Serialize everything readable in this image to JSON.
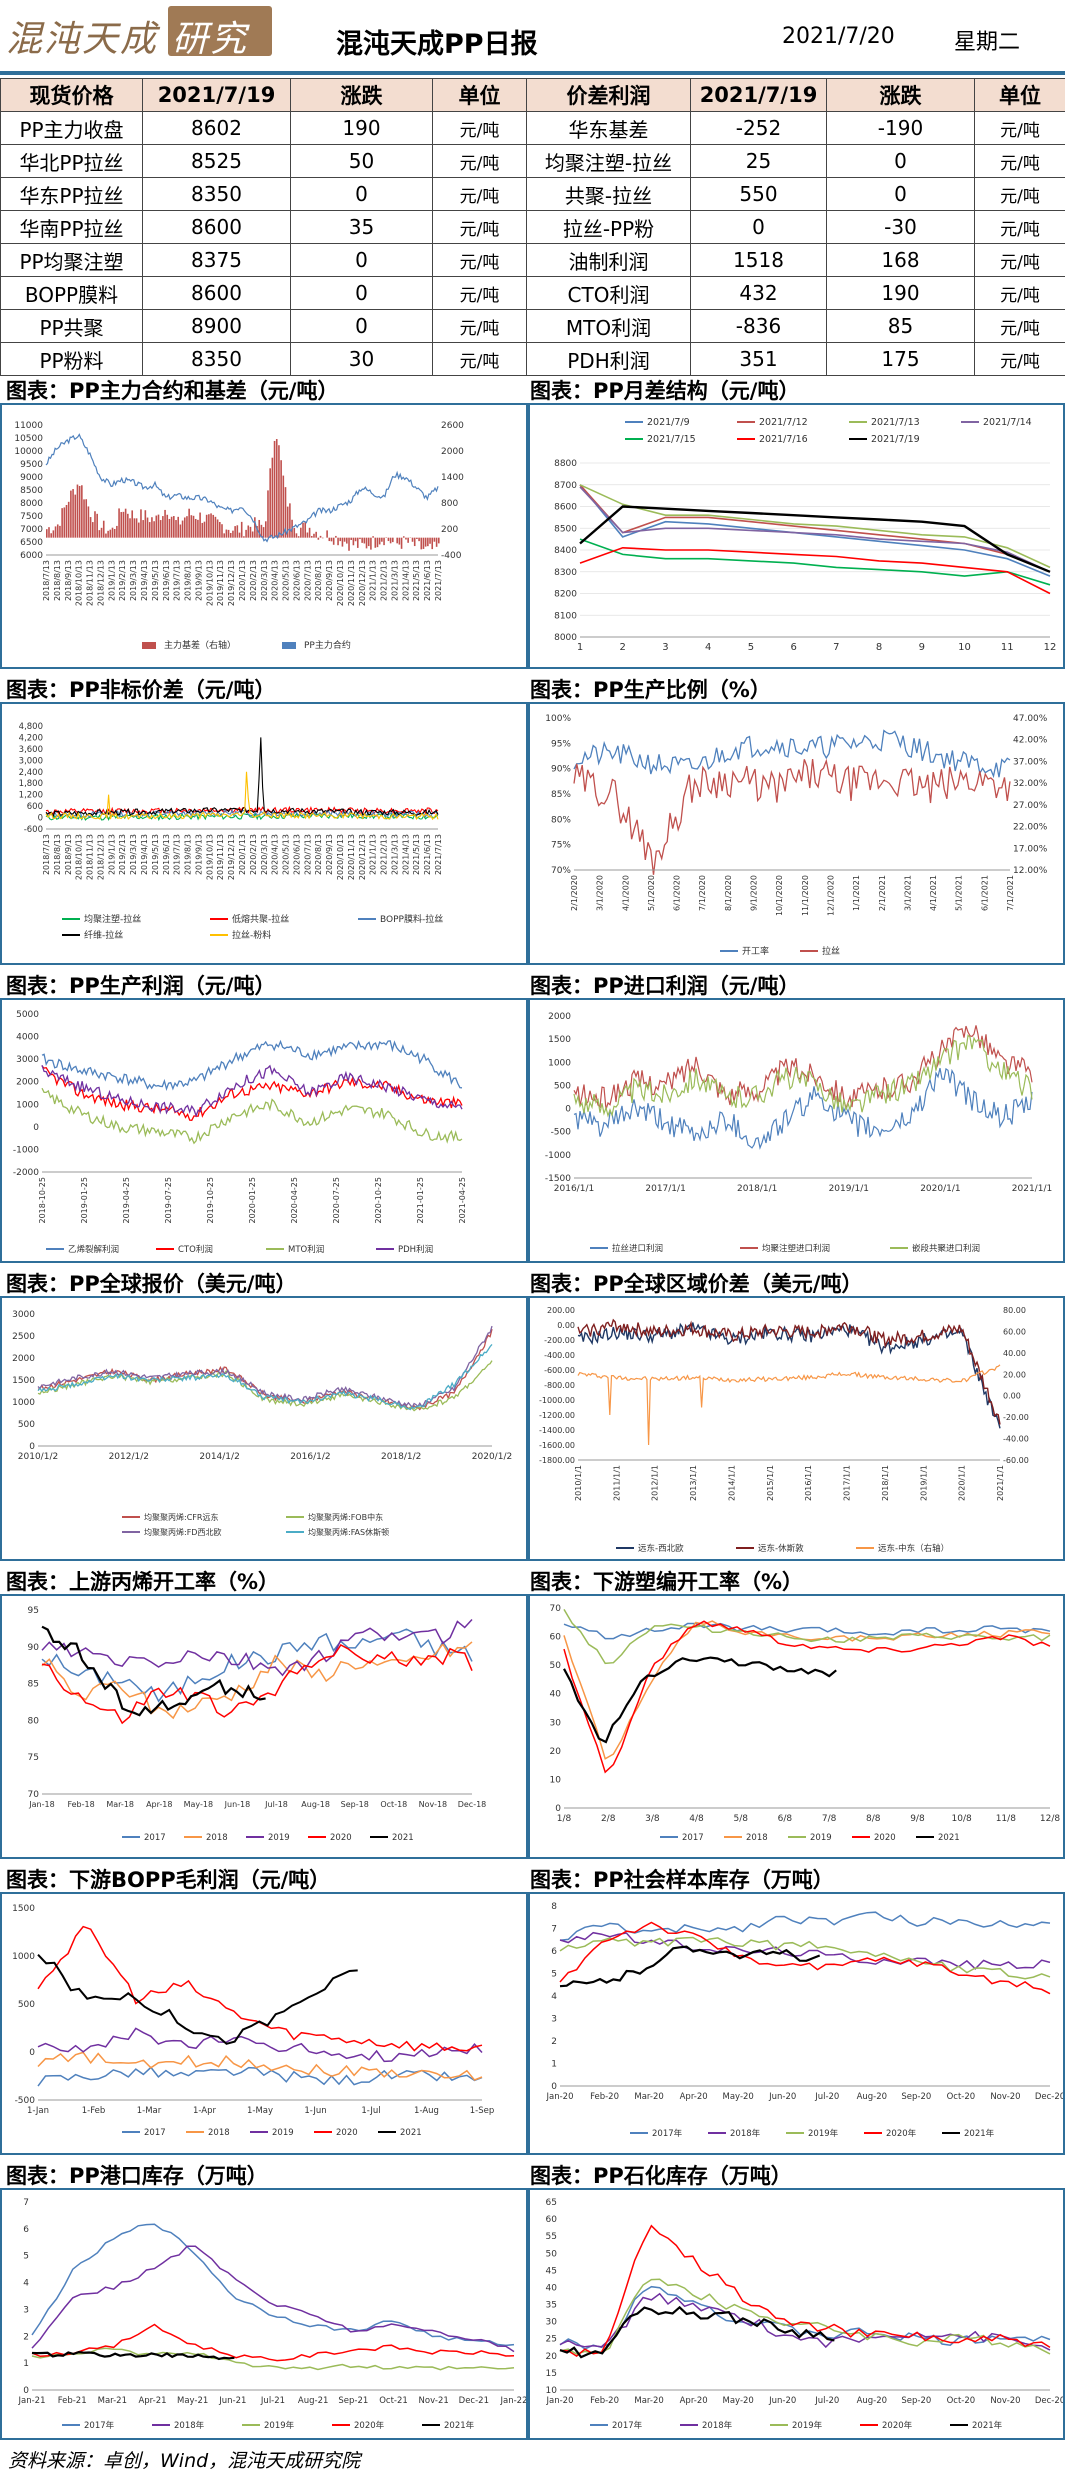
{
  "header": {
    "logo_left": "混沌天成",
    "logo_right": "研究院",
    "title": "混沌天成PP日报",
    "date": "2021/7/20",
    "weekday": "星期二"
  },
  "table": {
    "headers": [
      "现货价格",
      "2021/7/19",
      "涨跌",
      "单位",
      "价差利润",
      "2021/7/19",
      "涨跌",
      "单位"
    ],
    "rows": [
      [
        "PP主力收盘",
        "8602",
        "190",
        "元/吨",
        "华东基差",
        "-252",
        "-190",
        "元/吨"
      ],
      [
        "华北PP拉丝",
        "8525",
        "50",
        "元/吨",
        "均聚注塑-拉丝",
        "25",
        "0",
        "元/吨"
      ],
      [
        "华东PP拉丝",
        "8350",
        "0",
        "元/吨",
        "共聚-拉丝",
        "550",
        "0",
        "元/吨"
      ],
      [
        "华南PP拉丝",
        "8600",
        "35",
        "元/吨",
        "拉丝-PP粉",
        "0",
        "-30",
        "元/吨"
      ],
      [
        "PP均聚注塑",
        "8375",
        "0",
        "元/吨",
        "油制利润",
        "1518",
        "168",
        "元/吨"
      ],
      [
        "BOPP膜料",
        "8600",
        "0",
        "元/吨",
        "CTO利润",
        "432",
        "190",
        "元/吨"
      ],
      [
        "PP共聚",
        "8900",
        "0",
        "元/吨",
        "MTO利润",
        "-836",
        "85",
        "元/吨"
      ],
      [
        "PP粉料",
        "8350",
        "30",
        "元/吨",
        "PDH利润",
        "351",
        "175",
        "元/吨"
      ]
    ]
  },
  "section_titles": [
    "图表：PP主力合约和基差（元/吨）",
    "图表：PP月差结构（元/吨）",
    "图表：PP非标价差（元/吨）",
    "图表：PP生产比例（%）",
    "图表：PP生产利润（元/吨）",
    "图表：PP进口利润（元/吨）",
    "图表：PP全球报价（美元/吨）",
    "图表：PP全球区域价差（美元/吨）",
    "图表：上游丙烯开工率（%）",
    "图表：下游塑编开工率（%）",
    "图表：下游BOPP毛利润（元/吨）",
    "图表：PP社会样本库存（万吨）",
    "图表：PP港口库存（万吨）",
    "图表：PP石化库存（万吨）"
  ],
  "source": "资料来源：卓创，Wind，混沌天成研究院",
  "chart_data": [
    {
      "id": "c1",
      "type": "line",
      "title": "",
      "x_ticks": [
        "2018/7/13",
        "2018/8/13",
        "2018/9/13",
        "2018/10/13",
        "2018/11/13",
        "2018/12/13",
        "2019/1/13",
        "2019/2/13",
        "2019/3/13",
        "2019/4/13",
        "2019/5/13",
        "2019/6/13",
        "2019/7/13",
        "2019/8/13",
        "2019/9/13",
        "2019/10/13",
        "2019/11/13",
        "2019/12/13",
        "2020/1/13",
        "2020/2/13",
        "2020/3/13",
        "2020/4/13",
        "2020/5/13",
        "2020/6/13",
        "2020/7/13",
        "2020/8/13",
        "2020/9/13",
        "2020/10/13",
        "2020/11/13",
        "2020/12/13",
        "2021/1/13",
        "2021/2/13",
        "2021/3/13",
        "2021/4/13",
        "2021/5/13",
        "2021/6/13",
        "2021/7/13"
      ],
      "y_left": [
        6000,
        6500,
        7000,
        7500,
        8000,
        8500,
        9000,
        9500,
        10000,
        10500,
        11000
      ],
      "y_right": [
        -400,
        200,
        800,
        1400,
        2000,
        2600
      ],
      "series": [
        {
          "name": "主力基差（右轴）",
          "color": "#c0504d",
          "kind": "bar",
          "axis": "right"
        },
        {
          "name": "PP主力合约",
          "color": "#4f81bd",
          "kind": "line",
          "axis": "left",
          "values": [
            9500,
            10100,
            10400,
            10600,
            9900,
            9000,
            8700,
            8900,
            8800,
            8600,
            8700,
            8200,
            8300,
            8200,
            8200,
            8100,
            7800,
            7700,
            7900,
            7400,
            6600,
            6700,
            6900,
            7100,
            7300,
            7700,
            7700,
            7900,
            8100,
            8600,
            8400,
            8200,
            9100,
            9000,
            8600,
            8200,
            8600
          ]
        }
      ],
      "basis": [
        200,
        300,
        900,
        1300,
        600,
        250,
        150,
        700,
        500,
        500,
        400,
        700,
        300,
        550,
        500,
        400,
        300,
        200,
        200,
        300,
        250,
        2600,
        900,
        200,
        250,
        100,
        50,
        -50,
        -150,
        -200,
        -100,
        0,
        -150,
        -100,
        -200,
        -300,
        -250
      ]
    },
    {
      "id": "c2",
      "type": "line",
      "title": "",
      "x": [
        1,
        2,
        3,
        4,
        5,
        6,
        7,
        8,
        9,
        10,
        11,
        12
      ],
      "ylim": [
        8000,
        8800
      ],
      "y_ticks": [
        8000,
        8100,
        8200,
        8300,
        8400,
        8500,
        8600,
        8700,
        8800
      ],
      "series": [
        {
          "name": "2021/7/9",
          "color": "#4f81bd",
          "values": [
            8700,
            8460,
            8530,
            8520,
            8500,
            8480,
            8460,
            8440,
            8420,
            8400,
            8360,
            8280
          ]
        },
        {
          "name": "2021/7/12",
          "color": "#c0504d",
          "values": [
            8700,
            8480,
            8550,
            8550,
            8530,
            8510,
            8490,
            8470,
            8450,
            8430,
            8380,
            8300
          ]
        },
        {
          "name": "2021/7/13",
          "color": "#9bbb59",
          "values": [
            8700,
            8610,
            8560,
            8560,
            8540,
            8520,
            8510,
            8490,
            8470,
            8460,
            8410,
            8320
          ]
        },
        {
          "name": "2021/7/14",
          "color": "#8064a2",
          "values": [
            8690,
            8480,
            8500,
            8500,
            8490,
            8480,
            8470,
            8450,
            8440,
            8430,
            8390,
            8300
          ]
        },
        {
          "name": "2021/7/15",
          "color": "#00b050",
          "values": [
            8450,
            8380,
            8360,
            8360,
            8350,
            8340,
            8320,
            8310,
            8300,
            8280,
            8300,
            8240
          ]
        },
        {
          "name": "2021/7/16",
          "color": "#ff0000",
          "values": [
            8340,
            8410,
            8400,
            8400,
            8390,
            8380,
            8370,
            8350,
            8340,
            8320,
            8300,
            8200
          ]
        },
        {
          "name": "2021/7/19",
          "color": "#000000",
          "values": [
            8430,
            8600,
            8590,
            8580,
            8570,
            8560,
            8550,
            8540,
            8530,
            8510,
            8380,
            8300
          ]
        }
      ]
    },
    {
      "id": "c3",
      "type": "line",
      "title": "",
      "x_ticks": [
        "2018/7/13",
        "2018/8/13",
        "2018/9/13",
        "2018/10/13",
        "2018/11/13",
        "2018/12/13",
        "2019/1/13",
        "2019/2/13",
        "2019/3/13",
        "2019/4/13",
        "2019/5/13",
        "2019/6/13",
        "2019/7/13",
        "2019/8/13",
        "2019/9/13",
        "2019/10/13",
        "2019/11/13",
        "2019/12/13",
        "2020/1/13",
        "2020/2/13",
        "2020/3/13",
        "2020/4/13",
        "2020/5/13",
        "2020/6/13",
        "2020/7/13",
        "2020/8/13",
        "2020/9/13",
        "2020/10/13",
        "2020/11/13",
        "2020/12/13",
        "2021/1/13",
        "2021/2/13",
        "2021/3/13",
        "2021/4/13",
        "2021/5/13",
        "2021/6/13",
        "2021/7/13"
      ],
      "y_ticks": [
        -600,
        0,
        600,
        1200,
        1800,
        2400,
        3000,
        3600,
        4200,
        4800
      ],
      "y_tick_labels": [
        "-600",
        "0",
        "600",
        "1,200",
        "1,800",
        "2,400",
        "3,000",
        "3,600",
        "4,200",
        "4,800"
      ],
      "series": [
        {
          "name": "均聚注塑-拉丝",
          "color": "#00b050"
        },
        {
          "name": "低熔共聚-拉丝",
          "color": "#ff0000"
        },
        {
          "name": "BOPP膜料-拉丝",
          "color": "#4f81bd"
        },
        {
          "name": "纤维-拉丝",
          "color": "#000000"
        },
        {
          "name": "拉丝-粉料",
          "color": "#ffc000"
        }
      ]
    },
    {
      "id": "c4",
      "type": "line",
      "title": "",
      "y_left_ticks": [
        "70%",
        "75%",
        "80%",
        "85%",
        "90%",
        "95%",
        "100%"
      ],
      "y_right_ticks": [
        "12.00%",
        "17.00%",
        "22.00%",
        "27.00%",
        "32.00%",
        "37.00%",
        "42.00%",
        "47.00%"
      ],
      "x_ticks": [
        "2/1/2020",
        "3/1/2020",
        "4/1/2020",
        "5/1/2020",
        "6/1/2020",
        "7/1/2020",
        "8/1/2020",
        "9/1/2020",
        "10/1/2020",
        "11/1/2020",
        "12/1/2020",
        "1/1/2021",
        "2/1/2021",
        "3/1/2021",
        "4/1/2021",
        "5/1/2021",
        "6/1/2021",
        "7/1/2021"
      ],
      "series": [
        {
          "name": "开工率",
          "color": "#4f81bd"
        },
        {
          "name": "拉丝",
          "color": "#c0504d"
        }
      ]
    },
    {
      "id": "c5",
      "type": "line",
      "title": "",
      "y_ticks": [
        -2000,
        -1000,
        0,
        1000,
        2000,
        3000,
        4000,
        5000
      ],
      "x_ticks": [
        "2018-10-25",
        "2019-01-25",
        "2019-04-25",
        "2019-07-25",
        "2019-10-25",
        "2020-01-25",
        "2020-04-25",
        "2020-07-25",
        "2020-10-25",
        "2021-01-25",
        "2021-04-25"
      ],
      "series": [
        {
          "name": "乙烯裂解利润",
          "color": "#4f81bd"
        },
        {
          "name": "CTO利润",
          "color": "#ff0000"
        },
        {
          "name": "MTO利润",
          "color": "#9bbb59"
        },
        {
          "name": "PDH利润",
          "color": "#7030a0"
        }
      ]
    },
    {
      "id": "c6",
      "type": "line",
      "title": "",
      "y_ticks": [
        -1500,
        -1000,
        -500,
        0,
        500,
        1000,
        1500,
        2000
      ],
      "x_ticks": [
        "2016/1/1",
        "2017/1/1",
        "2018/1/1",
        "2019/1/1",
        "2020/1/1",
        "2021/1/1"
      ],
      "series": [
        {
          "name": "拉丝进口利润",
          "color": "#4f81bd"
        },
        {
          "name": "均聚注塑进口利润",
          "color": "#c0504d"
        },
        {
          "name": "嵌段共聚进口利润",
          "color": "#9bbb59"
        }
      ]
    },
    {
      "id": "c7",
      "type": "line",
      "title": "",
      "y_ticks": [
        0,
        500,
        1000,
        1500,
        2000,
        2500,
        3000
      ],
      "x_ticks": [
        "2010/1/2",
        "2012/1/2",
        "2014/1/2",
        "2016/1/2",
        "2018/1/2",
        "2020/1/2"
      ],
      "series": [
        {
          "name": "均聚聚丙烯:CFR远东",
          "color": "#c0504d"
        },
        {
          "name": "均聚聚丙烯:FOB中东",
          "color": "#9bbb59"
        },
        {
          "name": "均聚聚丙烯:FD西北欧",
          "color": "#8064a2"
        },
        {
          "name": "均聚聚丙烯:FAS休斯顿",
          "color": "#4bacc6"
        }
      ]
    },
    {
      "id": "c8",
      "type": "line",
      "title": "",
      "y_left_ticks": [
        "-1800.00",
        "-1600.00",
        "-1400.00",
        "-1200.00",
        "-1000.00",
        "-800.00",
        "-600.00",
        "-400.00",
        "-200.00",
        "0.00",
        "200.00"
      ],
      "y_right_ticks": [
        "-60.00",
        "-40.00",
        "-20.00",
        "0.00",
        "20.00",
        "40.00",
        "60.00",
        "80.00"
      ],
      "x_ticks": [
        "2010/1/1",
        "2011/1/1",
        "2012/1/1",
        "2013/1/1",
        "2014/1/1",
        "2015/1/1",
        "2016/1/1",
        "2017/1/1",
        "2018/1/1",
        "2019/1/1",
        "2020/1/1",
        "2021/1/1"
      ],
      "series": [
        {
          "name": "远东-西北欧",
          "color": "#1f3864"
        },
        {
          "name": "远东-休斯敦",
          "color": "#7f1f1f"
        },
        {
          "name": "远东-中东（右轴）",
          "color": "#f79646"
        }
      ]
    },
    {
      "id": "c9",
      "type": "line",
      "title": "",
      "ylim": [
        70,
        95
      ],
      "y_ticks": [
        70,
        75,
        80,
        85,
        90,
        95
      ],
      "x_ticks": [
        "Jan-18",
        "Feb-18",
        "Mar-18",
        "Apr-18",
        "May-18",
        "Jun-18",
        "Jul-18",
        "Aug-18",
        "Sep-18",
        "Oct-18",
        "Nov-18",
        "Dec-18"
      ],
      "series": [
        {
          "name": "2017",
          "color": "#4f81bd"
        },
        {
          "name": "2018",
          "color": "#f79646"
        },
        {
          "name": "2019",
          "color": "#7030a0"
        },
        {
          "name": "2020",
          "color": "#ff0000"
        },
        {
          "name": "2021",
          "color": "#000000"
        }
      ]
    },
    {
      "id": "c10",
      "type": "line",
      "title": "",
      "ylim": [
        0,
        70
      ],
      "y_ticks": [
        0,
        10,
        20,
        30,
        40,
        50,
        60,
        70
      ],
      "x_ticks": [
        "1/8",
        "2/8",
        "3/8",
        "4/8",
        "5/8",
        "6/8",
        "7/8",
        "8/8",
        "9/8",
        "10/8",
        "11/8",
        "12/8"
      ],
      "series": [
        {
          "name": "2017",
          "color": "#4f81bd"
        },
        {
          "name": "2018",
          "color": "#f79646"
        },
        {
          "name": "2019",
          "color": "#9bbb59"
        },
        {
          "name": "2020",
          "color": "#ff0000"
        },
        {
          "name": "2021",
          "color": "#000000"
        }
      ]
    },
    {
      "id": "c11",
      "type": "line",
      "title": "",
      "y_ticks": [
        -500,
        0,
        500,
        1000,
        1500
      ],
      "x_ticks": [
        "1-Jan",
        "1-Feb",
        "1-Mar",
        "1-Apr",
        "1-May",
        "1-Jun",
        "1-Jul",
        "1-Aug",
        "1-Sep"
      ],
      "series": [
        {
          "name": "2017",
          "color": "#4f81bd"
        },
        {
          "name": "2018",
          "color": "#f79646"
        },
        {
          "name": "2019",
          "color": "#7030a0"
        },
        {
          "name": "2020",
          "color": "#ff0000"
        },
        {
          "name": "2021",
          "color": "#000000"
        }
      ]
    },
    {
      "id": "c12",
      "type": "line",
      "title": "",
      "ylim": [
        0,
        8
      ],
      "y_ticks": [
        0,
        1,
        2,
        3,
        4,
        5,
        6,
        7,
        8
      ],
      "x_ticks": [
        "Jan-20",
        "Feb-20",
        "Mar-20",
        "Apr-20",
        "May-20",
        "Jun-20",
        "Jul-20",
        "Aug-20",
        "Sep-20",
        "Oct-20",
        "Nov-20",
        "Dec-20"
      ],
      "series": [
        {
          "name": "2017年",
          "color": "#4f81bd"
        },
        {
          "name": "2018年",
          "color": "#7030a0"
        },
        {
          "name": "2019年",
          "color": "#9bbb59"
        },
        {
          "name": "2020年",
          "color": "#ff0000"
        },
        {
          "name": "2021年",
          "color": "#000000"
        }
      ]
    },
    {
      "id": "c13",
      "type": "line",
      "title": "",
      "ylim": [
        0,
        7
      ],
      "y_ticks": [
        0,
        1,
        2,
        3,
        4,
        5,
        6,
        7
      ],
      "x_ticks": [
        "Jan-21",
        "Feb-21",
        "Mar-21",
        "Apr-21",
        "May-21",
        "Jun-21",
        "Jul-21",
        "Aug-21",
        "Sep-21",
        "Oct-21",
        "Nov-21",
        "Dec-21",
        "Jan-22"
      ],
      "series": [
        {
          "name": "2017年",
          "color": "#4f81bd"
        },
        {
          "name": "2018年",
          "color": "#7030a0"
        },
        {
          "name": "2019年",
          "color": "#9bbb59"
        },
        {
          "name": "2020年",
          "color": "#ff0000"
        },
        {
          "name": "2021年",
          "color": "#000000"
        }
      ]
    },
    {
      "id": "c14",
      "type": "line",
      "title": "",
      "ylim": [
        10,
        65
      ],
      "y_ticks": [
        10,
        15,
        20,
        25,
        30,
        35,
        40,
        45,
        50,
        55,
        60,
        65
      ],
      "x_ticks": [
        "Jan-20",
        "Feb-20",
        "Mar-20",
        "Apr-20",
        "May-20",
        "Jun-20",
        "Jul-20",
        "Aug-20",
        "Sep-20",
        "Oct-20",
        "Nov-20",
        "Dec-20"
      ],
      "series": [
        {
          "name": "2017年",
          "color": "#4f81bd"
        },
        {
          "name": "2018年",
          "color": "#7030a0"
        },
        {
          "name": "2019年",
          "color": "#9bbb59"
        },
        {
          "name": "2020年",
          "color": "#ff0000"
        },
        {
          "name": "2021年",
          "color": "#000000"
        }
      ]
    }
  ]
}
